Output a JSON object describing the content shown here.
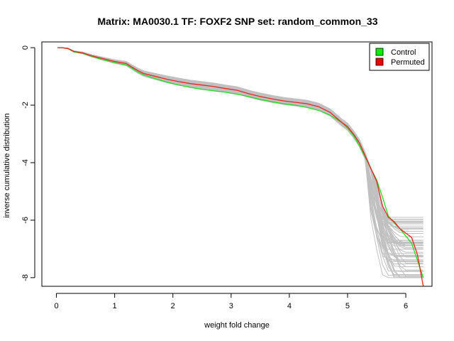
{
  "chart_data": {
    "type": "line",
    "title": "Matrix: MA0030.1 TF: FOXF2 SNP set: random_common_33",
    "xlabel": "weight fold change",
    "ylabel": "inverse cumulative distribution",
    "xlim": [
      -0.25,
      6.45
    ],
    "ylim": [
      -8.3,
      0.2
    ],
    "x_ticks": [
      0,
      1,
      2,
      3,
      4,
      5,
      6
    ],
    "y_ticks": [
      0,
      -2,
      -4,
      -6,
      -8
    ],
    "grid": false,
    "legend_position": "top-right",
    "legend": [
      {
        "label": "Control",
        "color": "#00ee00"
      },
      {
        "label": "Permuted",
        "color": "#ee0000"
      }
    ],
    "series": [
      {
        "name": "Control",
        "color": "#22dd22",
        "x": [
          0.02,
          0.1,
          0.2,
          0.3,
          0.45,
          0.6,
          0.8,
          1.0,
          1.2,
          1.3,
          1.4,
          1.5,
          1.7,
          1.9,
          2.1,
          2.3,
          2.5,
          2.7,
          2.9,
          3.1,
          3.3,
          3.5,
          3.7,
          3.9,
          4.1,
          4.3,
          4.5,
          4.7,
          4.9,
          5.0,
          5.1,
          5.2,
          5.3,
          5.4,
          5.5,
          5.6,
          5.7,
          5.8,
          5.9,
          6.0,
          6.1,
          6.2,
          6.3
        ],
        "y": [
          0,
          0,
          -0.03,
          -0.15,
          -0.2,
          -0.3,
          -0.42,
          -0.52,
          -0.6,
          -0.72,
          -0.85,
          -0.95,
          -1.08,
          -1.2,
          -1.3,
          -1.38,
          -1.45,
          -1.5,
          -1.55,
          -1.62,
          -1.7,
          -1.8,
          -1.88,
          -1.95,
          -2.0,
          -2.08,
          -2.18,
          -2.35,
          -2.6,
          -2.8,
          -3.05,
          -3.4,
          -3.8,
          -4.2,
          -4.6,
          -5.2,
          -5.85,
          -6.1,
          -6.3,
          -6.55,
          -6.8,
          -7.4,
          -8.0
        ]
      },
      {
        "name": "Permuted",
        "color": "#ee2222",
        "x": [
          0.02,
          0.1,
          0.2,
          0.3,
          0.45,
          0.6,
          0.8,
          1.0,
          1.2,
          1.3,
          1.4,
          1.5,
          1.7,
          1.9,
          2.1,
          2.3,
          2.5,
          2.7,
          2.9,
          3.1,
          3.3,
          3.5,
          3.7,
          3.9,
          4.1,
          4.3,
          4.5,
          4.7,
          4.9,
          5.0,
          5.1,
          5.2,
          5.3,
          5.4,
          5.5,
          5.6,
          5.7,
          5.8,
          5.9,
          6.0,
          6.1,
          6.2,
          6.3
        ],
        "y": [
          0,
          0,
          -0.03,
          -0.13,
          -0.18,
          -0.28,
          -0.38,
          -0.48,
          -0.55,
          -0.68,
          -0.8,
          -0.9,
          -1.0,
          -1.1,
          -1.18,
          -1.25,
          -1.3,
          -1.35,
          -1.42,
          -1.48,
          -1.6,
          -1.7,
          -1.78,
          -1.85,
          -1.9,
          -1.95,
          -2.05,
          -2.25,
          -2.6,
          -2.75,
          -3.0,
          -3.3,
          -3.75,
          -4.2,
          -4.65,
          -5.5,
          -5.9,
          -6.05,
          -6.3,
          -6.45,
          -6.6,
          -7.2,
          -8.3
        ]
      }
    ],
    "background_series_count": 60,
    "background_series_color": "#c0c0c0"
  }
}
